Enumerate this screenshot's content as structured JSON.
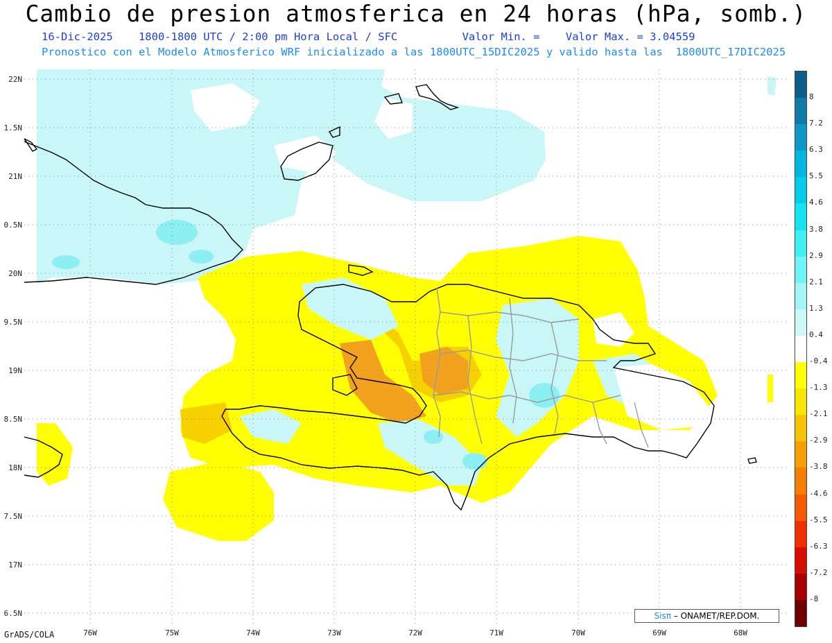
{
  "title": "Cambio de presion atmosferica en 24 horas (hPa, somb.)",
  "subtitle_line1": "16-Dic-2025    1800-1800 UTC / 2:00 pm Hora Local / SFC          Valor Min. =    Valor Max. = 3.04559",
  "subtitle_line2": "Pronostico con el Modelo Atmosferico WRF inicializado a las 1800UTC_15DIC2025 y valido hasta las  1800UTC_17DIC2025",
  "lat_labels": [
    "22N",
    "1.5N",
    "21N",
    "0.5N",
    "20N",
    "9.5N",
    "19N",
    "8.5N",
    "18N",
    "7.5N",
    "17N",
    "6.5N"
  ],
  "lon_labels": [
    "76W",
    "75W",
    "74W",
    "73W",
    "72W",
    "71W",
    "70W",
    "69W",
    "68W"
  ],
  "colorbar": {
    "labels": [
      "8",
      "7.2",
      "6.3",
      "5.5",
      "4.6",
      "3.8",
      "2.9",
      "2.1",
      "1.3",
      "0.4",
      "-0.4",
      "-1.3",
      "-2.1",
      "-2.9",
      "-3.8",
      "-4.6",
      "-5.5",
      "-6.3",
      "-7.2",
      "-8"
    ],
    "colors": [
      "#0b5f88",
      "#0e7bab",
      "#0d97c7",
      "#00b5e0",
      "#00cde9",
      "#15e4f0",
      "#3ef0f2",
      "#6ff5f5",
      "#a2f6f6",
      "#cdf8f8",
      "#ffffff",
      "#ffff00",
      "#f7e600",
      "#f5c400",
      "#f5a000",
      "#f57e00",
      "#f55a00",
      "#f03000",
      "#d60e00",
      "#a80000",
      "#700000"
    ]
  },
  "colors": {
    "land_outline": "#000000",
    "province_outline": "#9a9a9a",
    "light_cyan": "#c9f6f6",
    "cyan": "#8ceff2",
    "yellow": "#ffff00",
    "gold": "#f7d000",
    "orange": "#f2a21c",
    "grid": "#888888"
  },
  "credit": {
    "sis": "Sisπ",
    "rest": " – ONAMET/REP.DOM."
  },
  "footer": "GrADS/COLA"
}
